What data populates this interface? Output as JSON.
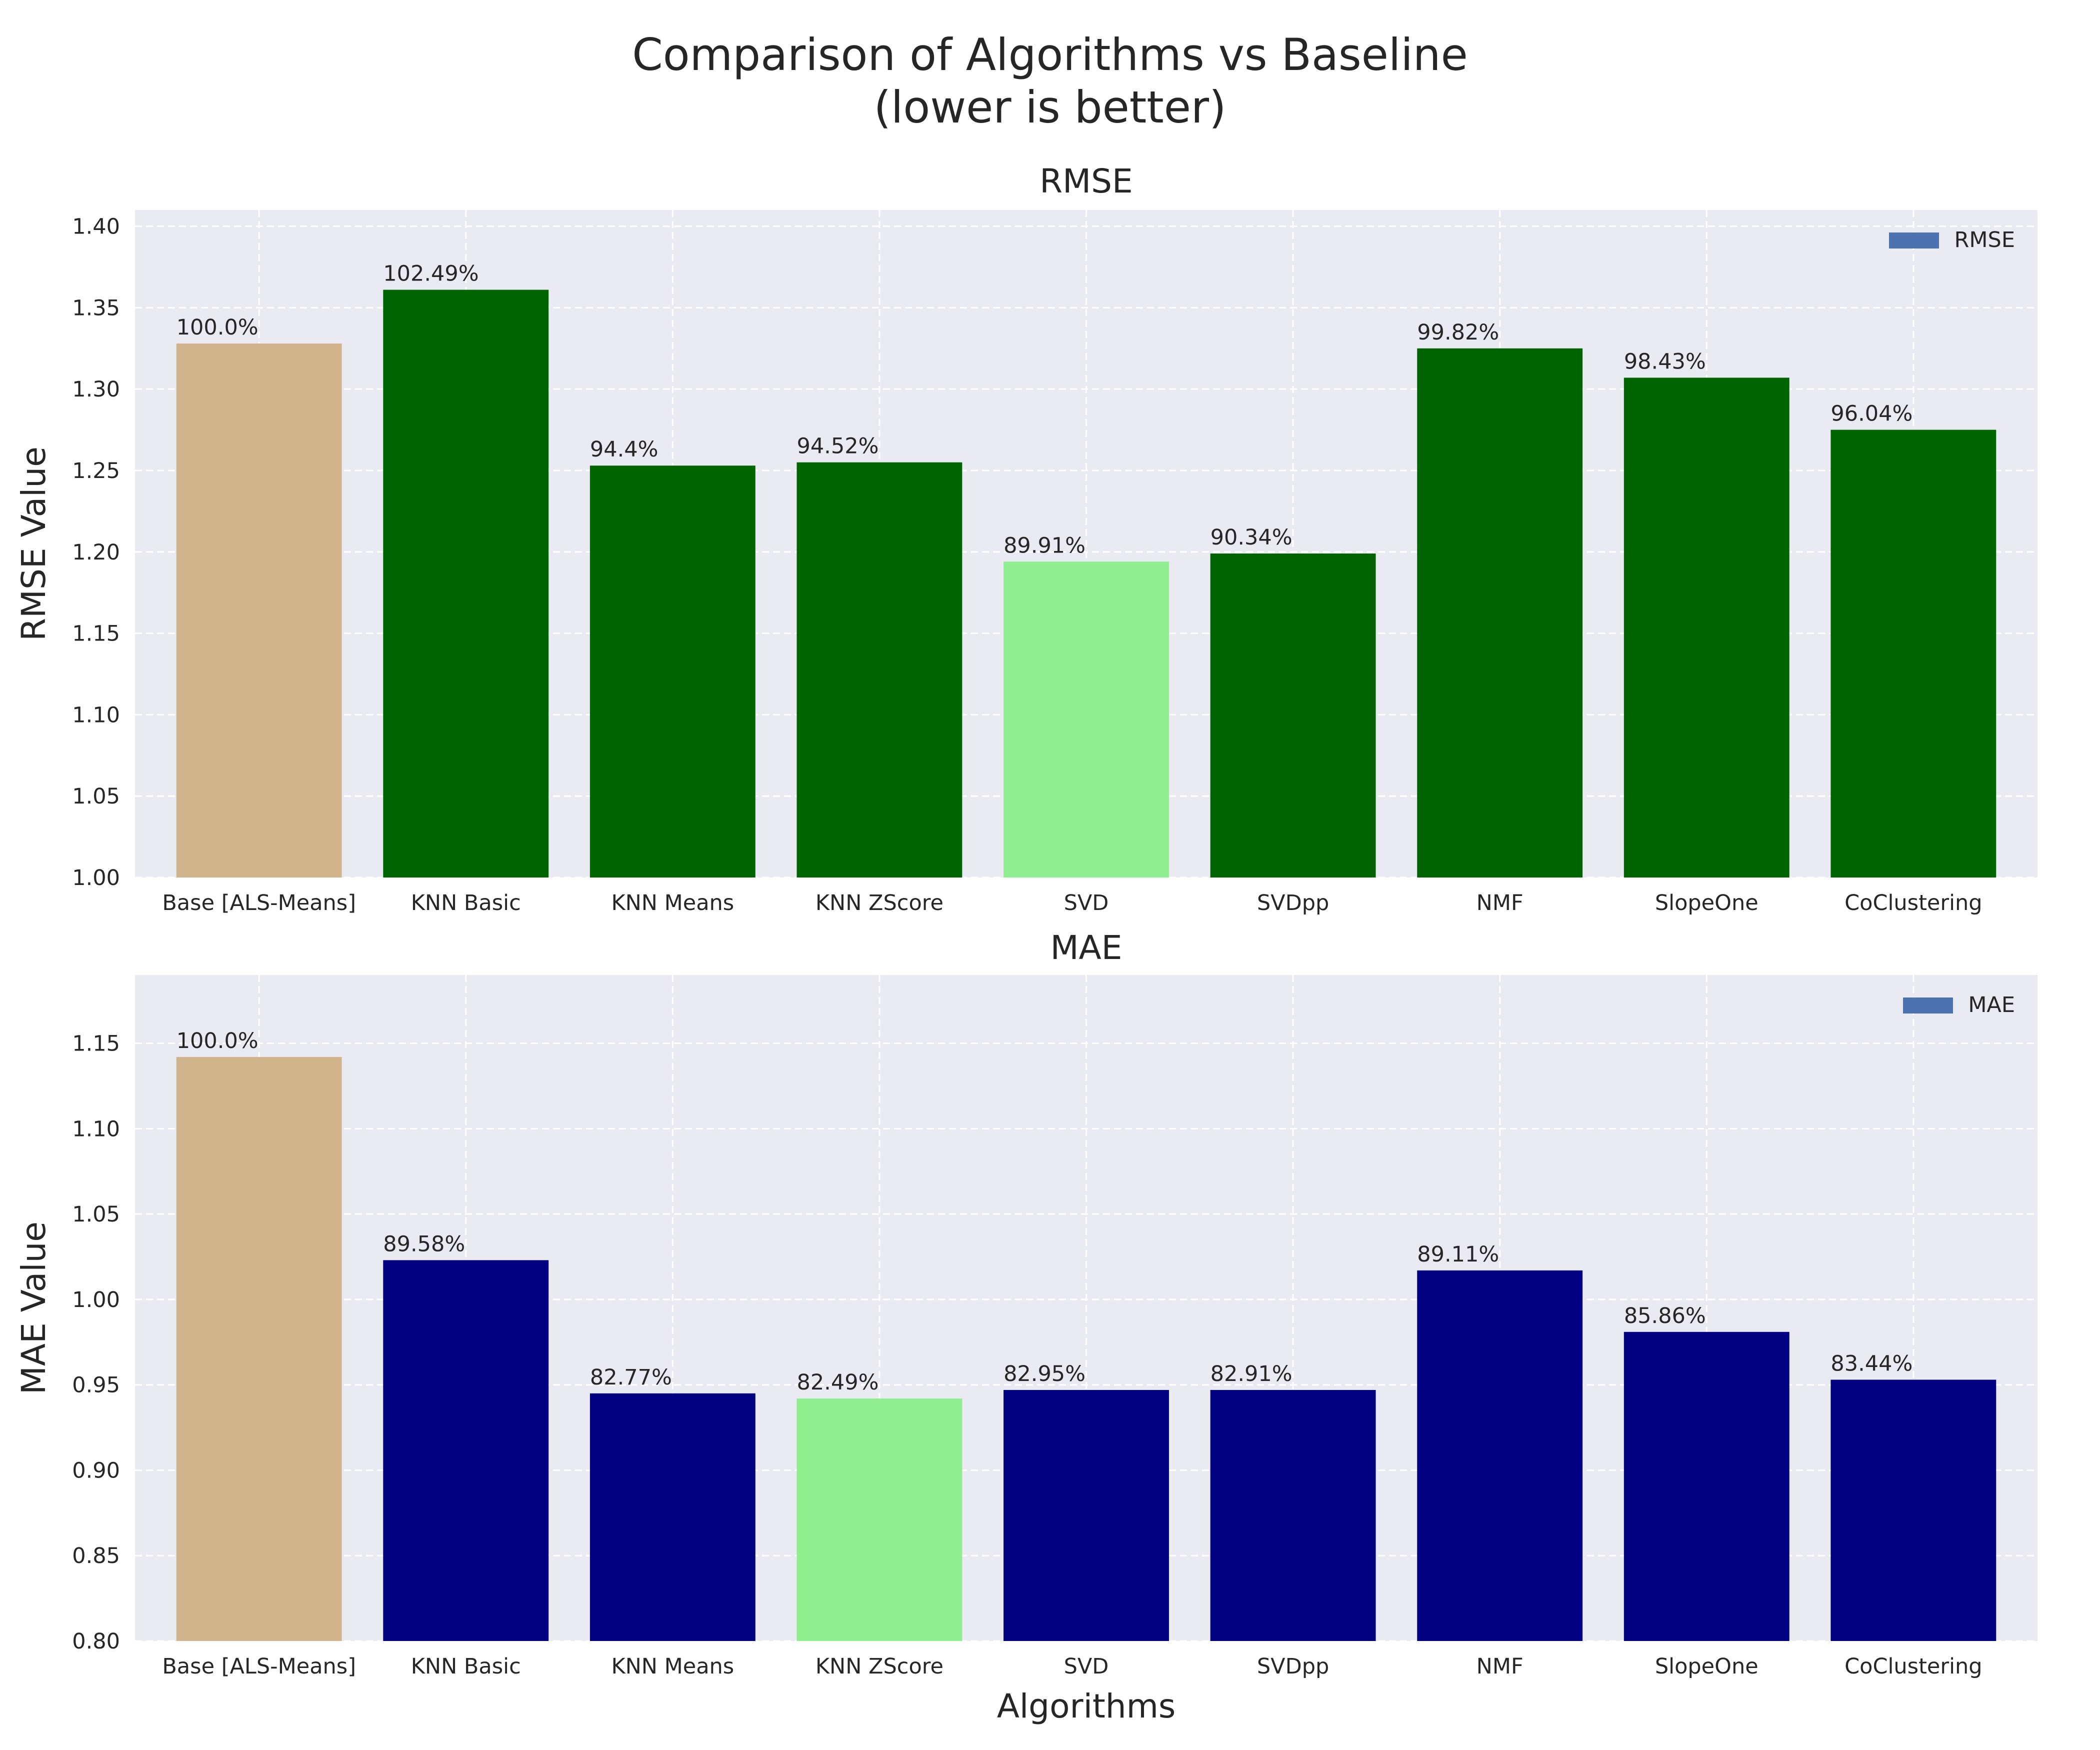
{
  "figure": {
    "title_line1": "Comparison of Algorithms vs Baseline",
    "title_line2": "(lower is better)"
  },
  "chart_data": [
    {
      "type": "bar",
      "title": "RMSE",
      "xlabel": "",
      "ylabel": "RMSE Value",
      "legend": {
        "label": "RMSE",
        "color": "#4c72b0",
        "placement": "top-right"
      },
      "grid": true,
      "ylim": [
        1.0,
        1.41
      ],
      "yticks": [
        1.0,
        1.05,
        1.1,
        1.15,
        1.2,
        1.25,
        1.3,
        1.35,
        1.4
      ],
      "ytick_labels": [
        "1.00",
        "1.05",
        "1.10",
        "1.15",
        "1.20",
        "1.25",
        "1.30",
        "1.35",
        "1.40"
      ],
      "categories": [
        "Base [ALS-Means]",
        "KNN Basic",
        "KNN Means",
        "KNN ZScore",
        "SVD",
        "SVDpp",
        "NMF",
        "SlopeOne",
        "CoClustering"
      ],
      "values": [
        1.328,
        1.361,
        1.253,
        1.255,
        1.194,
        1.199,
        1.325,
        1.307,
        1.275
      ],
      "labels": [
        "100.0%",
        "102.49%",
        "94.4%",
        "94.52%",
        "89.91%",
        "90.34%",
        "99.82%",
        "98.43%",
        "96.04%"
      ],
      "colors": [
        "#d2b48c",
        "#006400",
        "#006400",
        "#006400",
        "#90ee90",
        "#006400",
        "#006400",
        "#006400",
        "#006400"
      ]
    },
    {
      "type": "bar",
      "title": "MAE",
      "xlabel": "Algorithms",
      "ylabel": "MAE Value",
      "legend": {
        "label": "MAE",
        "color": "#4c72b0",
        "placement": "top-right"
      },
      "grid": true,
      "ylim": [
        0.8,
        1.19
      ],
      "yticks": [
        0.8,
        0.85,
        0.9,
        0.95,
        1.0,
        1.05,
        1.1,
        1.15
      ],
      "ytick_labels": [
        "0.80",
        "0.85",
        "0.90",
        "0.95",
        "1.00",
        "1.05",
        "1.10",
        "1.15"
      ],
      "categories": [
        "Base [ALS-Means]",
        "KNN Basic",
        "KNN Means",
        "KNN ZScore",
        "SVD",
        "SVDpp",
        "NMF",
        "SlopeOne",
        "CoClustering"
      ],
      "values": [
        1.142,
        1.023,
        0.945,
        0.942,
        0.947,
        0.947,
        1.017,
        0.981,
        0.953
      ],
      "labels": [
        "100.0%",
        "89.58%",
        "82.77%",
        "82.49%",
        "82.95%",
        "82.91%",
        "89.11%",
        "85.86%",
        "83.44%"
      ],
      "colors": [
        "#d2b48c",
        "#000080",
        "#000080",
        "#90ee90",
        "#000080",
        "#000080",
        "#000080",
        "#000080",
        "#000080"
      ]
    }
  ]
}
